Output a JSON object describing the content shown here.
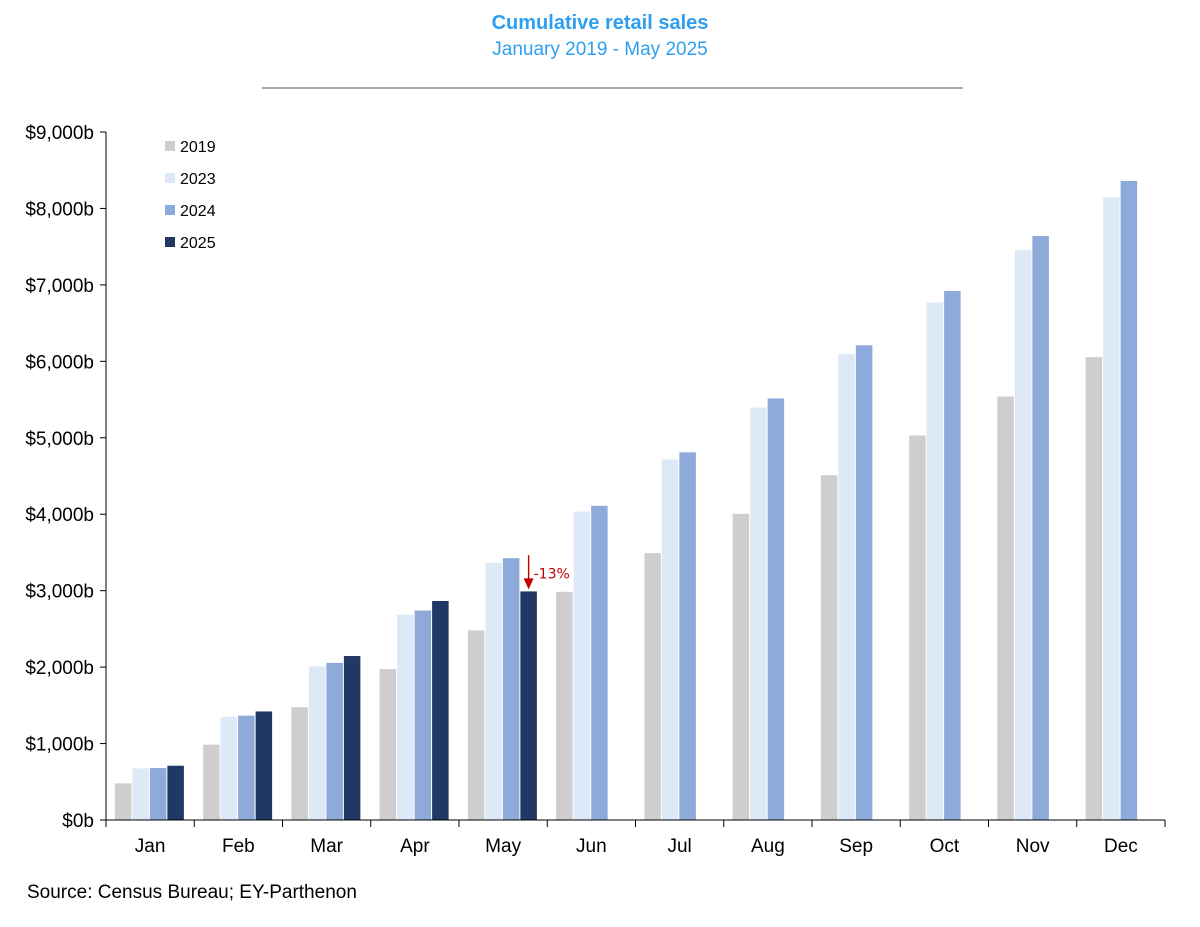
{
  "chart_data": {
    "type": "bar",
    "title": "Cumulative retail sales",
    "subtitle": "January 2019 - May 2025",
    "categories": [
      "Jan",
      "Feb",
      "Mar",
      "Apr",
      "May",
      "Jun",
      "Jul",
      "Aug",
      "Sep",
      "Oct",
      "Nov",
      "Dec"
    ],
    "series": [
      {
        "name": "2019",
        "color": "#cfcdcd",
        "values": [
          480,
          985,
          1475,
          1975,
          2480,
          2985,
          3490,
          4005,
          4510,
          5030,
          5540,
          6055
        ]
      },
      {
        "name": "2023",
        "color": "#dde9f6",
        "values": [
          675,
          1350,
          2010,
          2685,
          3365,
          4035,
          4715,
          5395,
          6095,
          6770,
          7455,
          8145
        ]
      },
      {
        "name": "2024",
        "color": "#8eaadb",
        "values": [
          680,
          1365,
          2055,
          2740,
          3425,
          4110,
          4810,
          5515,
          6210,
          6920,
          7640,
          8360
        ]
      },
      {
        "name": "2025",
        "color": "#203864",
        "values": [
          710,
          1420,
          2145,
          2865,
          2990,
          null,
          null,
          null,
          null,
          null,
          null,
          null
        ]
      }
    ],
    "ylim": [
      0,
      9000
    ],
    "yticks": [
      0,
      1000,
      2000,
      3000,
      4000,
      5000,
      6000,
      7000,
      8000,
      9000
    ],
    "ytick_labels": [
      "$0b",
      "$1,000b",
      "$2,000b",
      "$3,000b",
      "$4,000b",
      "$5,000b",
      "$6,000b",
      "$7,000b",
      "$8,000b",
      "$9,000b"
    ],
    "legend_position": "top-left",
    "annotation": {
      "text": "-13%",
      "category": "May",
      "from": 3425,
      "to": 2990,
      "color": "#c00000"
    },
    "source": "Source: Census Bureau; EY-Parthenon",
    "title_color": "#2e9ff0"
  }
}
